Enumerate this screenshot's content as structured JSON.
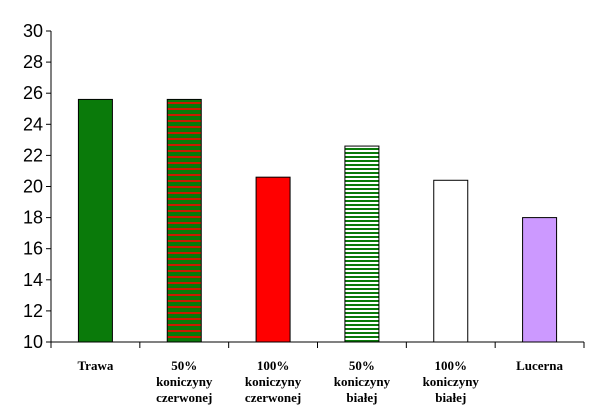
{
  "chart_data": {
    "type": "bar",
    "categories": [
      [
        "Trawa"
      ],
      [
        "50%",
        "koniczyny",
        "czerwonej"
      ],
      [
        "100%",
        "koniczyny",
        "czerwonej"
      ],
      [
        "50%",
        "koniczyny",
        "białej"
      ],
      [
        "100%",
        "koniczyny",
        "białej"
      ],
      [
        "Lucerna"
      ]
    ],
    "values": [
      25.6,
      25.6,
      20.6,
      22.6,
      20.4,
      18.0
    ],
    "ylim": [
      10,
      30
    ],
    "yticks": [
      10,
      12,
      14,
      16,
      18,
      20,
      22,
      24,
      26,
      28,
      30
    ],
    "title": "",
    "xlabel": "",
    "ylabel": "",
    "grid": false,
    "bar_styles": [
      {
        "fill": "#0a7a0a",
        "pattern": "solid"
      },
      {
        "fill": "#0a7a0a",
        "pattern": "red-stripes"
      },
      {
        "fill": "#ff0000",
        "pattern": "solid"
      },
      {
        "fill": "#ffffff",
        "pattern": "green-stripes"
      },
      {
        "fill": "#ffffff",
        "pattern": "solid"
      },
      {
        "fill": "#cc99ff",
        "pattern": "solid"
      }
    ]
  }
}
